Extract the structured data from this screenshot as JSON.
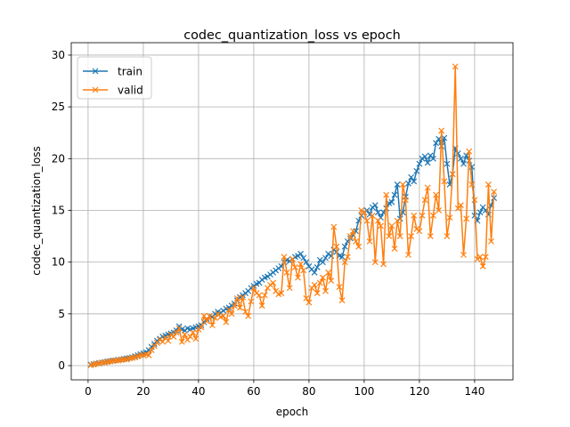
{
  "chart_data": {
    "type": "line",
    "title": "codec_quantization_loss vs epoch",
    "xlabel": "epoch",
    "ylabel": "codec_quantization_loss",
    "xlim": [
      -6.1,
      153.9
    ],
    "ylim": [
      -1.375,
      31.2
    ],
    "xticks": [
      0,
      20,
      40,
      60,
      80,
      100,
      120,
      140
    ],
    "yticks": [
      0,
      5,
      10,
      15,
      20,
      25,
      30
    ],
    "grid": true,
    "legend": "top-left",
    "x_start": 1,
    "series": [
      {
        "name": "train",
        "color": "#1f77b4",
        "values": [
          0.1,
          0.15,
          0.2,
          0.25,
          0.3,
          0.35,
          0.4,
          0.45,
          0.5,
          0.5,
          0.55,
          0.6,
          0.65,
          0.7,
          0.75,
          0.8,
          0.9,
          1.0,
          1.1,
          1.2,
          1.3,
          1.5,
          1.8,
          2.1,
          2.4,
          2.6,
          2.8,
          2.9,
          3.0,
          3.1,
          3.2,
          3.4,
          3.8,
          3.5,
          3.4,
          3.6,
          3.5,
          3.6,
          3.7,
          3.8,
          3.9,
          4.2,
          4.5,
          4.8,
          4.7,
          5.0,
          5.2,
          5.1,
          5.3,
          5.5,
          5.6,
          5.8,
          6.0,
          6.3,
          6.6,
          6.8,
          7.0,
          7.2,
          7.5,
          7.7,
          7.9,
          8.0,
          8.3,
          8.5,
          8.6,
          8.8,
          9.0,
          9.2,
          9.4,
          9.6,
          10.0,
          10.2,
          10.1,
          10.3,
          10.5,
          10.6,
          10.8,
          10.4,
          10.0,
          9.6,
          9.3,
          9.0,
          9.5,
          10.2,
          10.0,
          10.4,
          10.8,
          10.6,
          11.2,
          11.0,
          10.6,
          10.5,
          11.5,
          12.0,
          12.3,
          12.6,
          13.0,
          14.0,
          14.5,
          14.8,
          15.0,
          14.6,
          15.3,
          15.5,
          14.8,
          14.3,
          14.8,
          15.2,
          15.7,
          15.8,
          16.5,
          17.5,
          14.2,
          14.8,
          16.3,
          17.6,
          18.2,
          17.8,
          18.8,
          19.5,
          20.0,
          20.2,
          19.6,
          20.3,
          20.0,
          21.5,
          21.9,
          21.2,
          22.0,
          19.5,
          17.5,
          18.5,
          21.0,
          20.5,
          20.0,
          19.5,
          20.3,
          19.8,
          19.2,
          14.5,
          14.0,
          14.8,
          15.3,
          15.0,
          14.6,
          15.5,
          16.2
        ]
      },
      {
        "name": "valid",
        "color": "#ff7f0e",
        "values": [
          0.05,
          0.1,
          0.2,
          0.2,
          0.3,
          0.3,
          0.35,
          0.4,
          0.45,
          0.5,
          0.5,
          0.55,
          0.6,
          0.6,
          0.7,
          0.75,
          0.8,
          0.9,
          1.0,
          1.0,
          1.1,
          1.0,
          1.5,
          1.9,
          2.2,
          2.5,
          2.3,
          2.7,
          2.4,
          3.0,
          2.8,
          3.2,
          3.6,
          2.3,
          3.0,
          2.5,
          2.8,
          3.2,
          2.6,
          3.5,
          3.7,
          4.8,
          4.3,
          4.8,
          3.9,
          4.6,
          5.0,
          4.7,
          4.8,
          4.2,
          5.4,
          5.0,
          5.8,
          6.5,
          5.6,
          6.6,
          5.2,
          4.8,
          6.2,
          7.5,
          7.0,
          6.8,
          5.8,
          6.8,
          7.5,
          7.8,
          8.0,
          7.2,
          6.9,
          7.0,
          10.5,
          9.0,
          7.5,
          10.3,
          9.5,
          8.5,
          9.8,
          9.2,
          6.5,
          6.1,
          7.5,
          7.8,
          7.0,
          8.0,
          8.5,
          7.2,
          9.0,
          8.2,
          13.4,
          11.5,
          7.6,
          6.3,
          10.0,
          10.5,
          12.5,
          13.0,
          12.0,
          11.5,
          15.0,
          14.8,
          14.0,
          12.0,
          14.5,
          10.0,
          14.0,
          13.5,
          9.8,
          16.5,
          12.5,
          13.5,
          11.3,
          14.0,
          12.5,
          17.5,
          16.0,
          10.7,
          12.5,
          14.5,
          13.2,
          13.0,
          14.5,
          16.0,
          17.2,
          12.5,
          14.5,
          16.5,
          15.0,
          22.7,
          17.8,
          12.5,
          14.3,
          18.5,
          28.9,
          15.2,
          15.5,
          10.7,
          14.2,
          20.7,
          17.5,
          16.0,
          10.3,
          10.5,
          9.6,
          10.5,
          17.5,
          12.0,
          16.8
        ]
      }
    ]
  }
}
